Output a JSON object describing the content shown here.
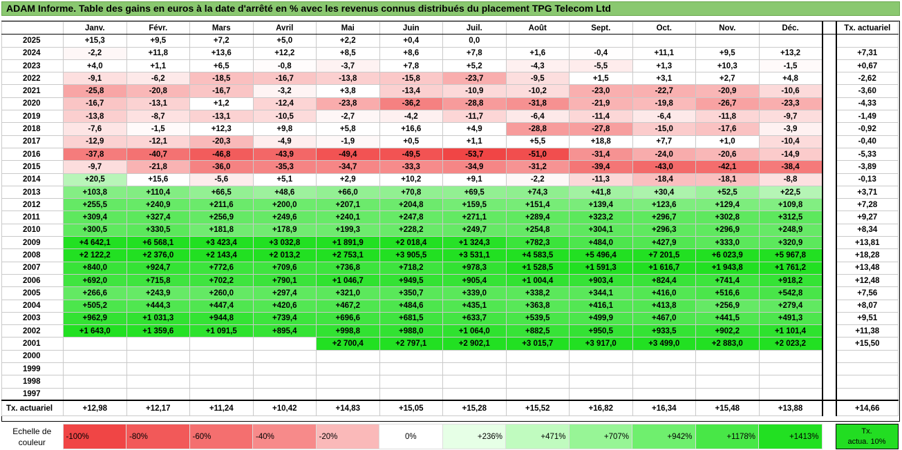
{
  "title": "ADAM Informe. Table des gains en euros à la date d'arrêté en % avec les revenus connus distribués du placement TPG Telecom Ltd",
  "months": [
    "Janv.",
    "Févr.",
    "Mars",
    "Avril",
    "Mai",
    "Juin",
    "Juil.",
    "Août",
    "Sept.",
    "Oct.",
    "Nov.",
    "Déc."
  ],
  "tx_header": "Tx. actuariel",
  "rows": [
    {
      "year": "2025",
      "vals": [
        "+15,3",
        "+9,5",
        "+7,2",
        "+5,0",
        "+2,2",
        "+0,4",
        "0,0",
        "",
        "",
        "",
        "",
        ""
      ],
      "tx": ""
    },
    {
      "year": "2024",
      "vals": [
        "-2,2",
        "+11,8",
        "+13,6",
        "+12,2",
        "+8,5",
        "+8,6",
        "+7,8",
        "+1,6",
        "-0,4",
        "+11,1",
        "+9,5",
        "+13,2"
      ],
      "tx": "+7,31"
    },
    {
      "year": "2023",
      "vals": [
        "+4,0",
        "+1,1",
        "+6,5",
        "-0,8",
        "-3,7",
        "+7,8",
        "+5,2",
        "-4,3",
        "-5,5",
        "+1,3",
        "+10,3",
        "-1,5"
      ],
      "tx": "+0,67"
    },
    {
      "year": "2022",
      "vals": [
        "-9,1",
        "-6,2",
        "-18,5",
        "-16,7",
        "-13,8",
        "-15,8",
        "-23,7",
        "-9,5",
        "+1,5",
        "+3,1",
        "+2,7",
        "+4,8"
      ],
      "tx": "-2,62"
    },
    {
      "year": "2021",
      "vals": [
        "-25,8",
        "-20,8",
        "-16,7",
        "-3,2",
        "+3,8",
        "-13,4",
        "-10,9",
        "-10,2",
        "-23,0",
        "-22,7",
        "-20,9",
        "-10,6"
      ],
      "tx": "-3,60"
    },
    {
      "year": "2020",
      "vals": [
        "-16,7",
        "-13,1",
        "+1,2",
        "-12,4",
        "-23,8",
        "-36,2",
        "-28,8",
        "-31,8",
        "-21,9",
        "-19,8",
        "-26,7",
        "-23,3"
      ],
      "tx": "-4,33"
    },
    {
      "year": "2019",
      "vals": [
        "-13,8",
        "-8,7",
        "-13,1",
        "-10,5",
        "-2,7",
        "-4,2",
        "-11,7",
        "-6,4",
        "-11,4",
        "-6,4",
        "-11,8",
        "-9,7"
      ],
      "tx": "-1,49"
    },
    {
      "year": "2018",
      "vals": [
        "-7,6",
        "-1,5",
        "+12,3",
        "+9,8",
        "+5,8",
        "+16,6",
        "+4,9",
        "-28,8",
        "-27,8",
        "-15,0",
        "-17,6",
        "-3,9"
      ],
      "tx": "-0,92"
    },
    {
      "year": "2017",
      "vals": [
        "-12,9",
        "-12,1",
        "-20,3",
        "-4,9",
        "-1,9",
        "+0,5",
        "+1,1",
        "+5,5",
        "+18,8",
        "+7,7",
        "+1,0",
        "-10,4"
      ],
      "tx": "-0,40"
    },
    {
      "year": "2016",
      "vals": [
        "-37,8",
        "-40,7",
        "-46,8",
        "-43,9",
        "-49,4",
        "-49,5",
        "-53,7",
        "-51,0",
        "-31,4",
        "-24,0",
        "-20,6",
        "-14,9"
      ],
      "tx": "-5,33"
    },
    {
      "year": "2015",
      "vals": [
        "-9,7",
        "-21,8",
        "-36,0",
        "-35,3",
        "-34,7",
        "-33,3",
        "-34,9",
        "-31,2",
        "-39,4",
        "-43,0",
        "-42,1",
        "-38,4"
      ],
      "tx": "-3,89"
    },
    {
      "year": "2014",
      "vals": [
        "+20,5",
        "+15,6",
        "-5,6",
        "+5,1",
        "+2,9",
        "+10,2",
        "+9,1",
        "-2,2",
        "-11,3",
        "-18,4",
        "-18,1",
        "-8,8"
      ],
      "tx": "-0,13"
    },
    {
      "year": "2013",
      "vals": [
        "+103,8",
        "+110,4",
        "+66,5",
        "+48,6",
        "+66,0",
        "+70,8",
        "+69,5",
        "+74,3",
        "+41,8",
        "+30,4",
        "+52,5",
        "+22,5"
      ],
      "tx": "+3,71"
    },
    {
      "year": "2012",
      "vals": [
        "+255,5",
        "+240,9",
        "+211,6",
        "+200,0",
        "+207,1",
        "+204,8",
        "+159,5",
        "+151,4",
        "+139,4",
        "+123,6",
        "+129,4",
        "+109,8"
      ],
      "tx": "+7,28"
    },
    {
      "year": "2011",
      "vals": [
        "+309,4",
        "+327,4",
        "+256,9",
        "+249,6",
        "+240,1",
        "+247,8",
        "+271,1",
        "+289,4",
        "+323,2",
        "+296,7",
        "+302,8",
        "+312,5"
      ],
      "tx": "+9,27"
    },
    {
      "year": "2010",
      "vals": [
        "+300,5",
        "+330,5",
        "+181,8",
        "+178,9",
        "+199,3",
        "+228,2",
        "+249,7",
        "+254,8",
        "+304,1",
        "+296,3",
        "+296,9",
        "+248,9"
      ],
      "tx": "+8,34"
    },
    {
      "year": "2009",
      "vals": [
        "+4 642,1",
        "+6 568,1",
        "+3 423,4",
        "+3 032,8",
        "+1 891,9",
        "+2 018,4",
        "+1 324,3",
        "+782,3",
        "+484,0",
        "+427,9",
        "+333,0",
        "+320,9"
      ],
      "tx": "+13,81"
    },
    {
      "year": "2008",
      "vals": [
        "+2 122,2",
        "+2 376,0",
        "+2 143,4",
        "+2 013,2",
        "+2 753,1",
        "+3 905,5",
        "+3 531,1",
        "+4 583,5",
        "+5 496,4",
        "+7 201,5",
        "+6 023,9",
        "+5 967,8"
      ],
      "tx": "+18,28"
    },
    {
      "year": "2007",
      "vals": [
        "+840,0",
        "+924,7",
        "+772,6",
        "+709,6",
        "+736,8",
        "+718,2",
        "+978,3",
        "+1 528,5",
        "+1 591,3",
        "+1 616,7",
        "+1 943,8",
        "+1 761,2"
      ],
      "tx": "+13,48"
    },
    {
      "year": "2006",
      "vals": [
        "+692,0",
        "+715,8",
        "+702,2",
        "+790,1",
        "+1 046,7",
        "+949,5",
        "+905,4",
        "+1 004,4",
        "+903,4",
        "+824,4",
        "+741,4",
        "+918,2"
      ],
      "tx": "+12,48"
    },
    {
      "year": "2005",
      "vals": [
        "+266,6",
        "+243,9",
        "+260,0",
        "+297,4",
        "+321,0",
        "+350,7",
        "+339,0",
        "+338,2",
        "+344,1",
        "+416,0",
        "+516,6",
        "+542,8"
      ],
      "tx": "+7,56"
    },
    {
      "year": "2004",
      "vals": [
        "+505,2",
        "+444,3",
        "+447,4",
        "+420,6",
        "+467,2",
        "+484,6",
        "+435,1",
        "+363,8",
        "+416,1",
        "+413,8",
        "+256,9",
        "+279,4"
      ],
      "tx": "+8,07"
    },
    {
      "year": "2003",
      "vals": [
        "+962,9",
        "+1 031,3",
        "+944,8",
        "+739,4",
        "+696,6",
        "+681,5",
        "+633,7",
        "+539,5",
        "+499,9",
        "+467,0",
        "+441,5",
        "+491,3"
      ],
      "tx": "+9,51"
    },
    {
      "year": "2002",
      "vals": [
        "+1 643,0",
        "+1 359,6",
        "+1 091,5",
        "+895,4",
        "+998,8",
        "+988,0",
        "+1 064,0",
        "+882,5",
        "+950,5",
        "+933,5",
        "+902,2",
        "+1 101,4"
      ],
      "tx": "+11,38"
    },
    {
      "year": "2001",
      "vals": [
        "",
        "",
        "",
        "",
        "+2 700,4",
        "+2 797,1",
        "+2 902,1",
        "+3 015,7",
        "+3 917,0",
        "+3 499,0",
        "+2 883,0",
        "+2 023,2"
      ],
      "tx": "+15,50"
    },
    {
      "year": "2000",
      "vals": [
        "",
        "",
        "",
        "",
        "",
        "",
        "",
        "",
        "",
        "",
        "",
        ""
      ],
      "tx": ""
    },
    {
      "year": "1999",
      "vals": [
        "",
        "",
        "",
        "",
        "",
        "",
        "",
        "",
        "",
        "",
        "",
        ""
      ],
      "tx": ""
    },
    {
      "year": "1998",
      "vals": [
        "",
        "",
        "",
        "",
        "",
        "",
        "",
        "",
        "",
        "",
        "",
        ""
      ],
      "tx": ""
    },
    {
      "year": "1997",
      "vals": [
        "",
        "",
        "",
        "",
        "",
        "",
        "",
        "",
        "",
        "",
        "",
        ""
      ],
      "tx": ""
    }
  ],
  "footer": {
    "label": "Tx. actuariel",
    "vals": [
      "+12,98",
      "+12,17",
      "+11,24",
      "+10,42",
      "+14,83",
      "+15,05",
      "+15,28",
      "+15,52",
      "+16,82",
      "+16,34",
      "+15,48",
      "+13,88"
    ],
    "tx": "+14,66"
  },
  "scale": {
    "label_line1": "Echelle de",
    "label_line2": "couleur",
    "items": [
      "-100%",
      "-80%",
      "-60%",
      "-40%",
      "-20%",
      "0%",
      "+236%",
      "+471%",
      "+707%",
      "+942%",
      "+1178%",
      "+1413%"
    ],
    "last_line1": "Tx.",
    "last_line2": "actua. 10%"
  },
  "colors": {
    "red_strong": "#f04545",
    "green_strong": "#22e022",
    "title_bg": "#8ac870",
    "tx_box": "#22dd22"
  }
}
